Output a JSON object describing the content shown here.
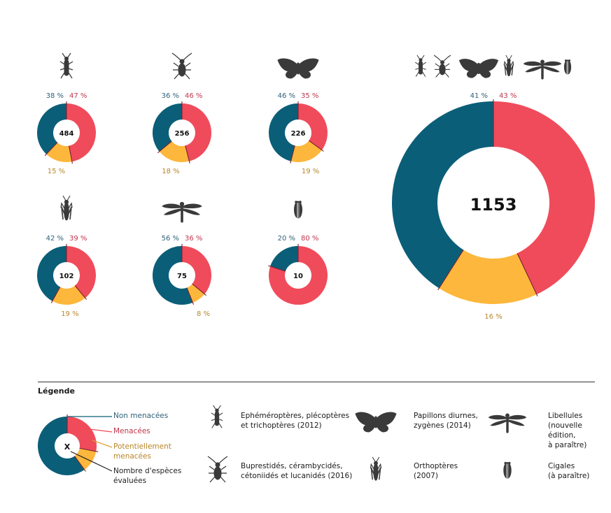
{
  "colors": {
    "non_threatened": "#0b5e78",
    "threatened": "#f04b5b",
    "potentially": "#fdb73c",
    "label_non": "#2f6179",
    "label_threat": "#c0364b",
    "label_pot": "#b8862a",
    "icon": "#3a3a3a"
  },
  "chart_data": {
    "type": "pie",
    "charts": [
      {
        "icon": "caddisfly-icon",
        "total": "484",
        "values": {
          "non_threatened": 38,
          "threatened": 47,
          "potentially": 15
        },
        "labels": {
          "non_threatened": "38 %",
          "threatened": "47 %",
          "potentially": "15 %"
        }
      },
      {
        "icon": "beetle-icon",
        "total": "256",
        "values": {
          "non_threatened": 36,
          "threatened": 46,
          "potentially": 18
        },
        "labels": {
          "non_threatened": "36 %",
          "threatened": "46 %",
          "potentially": "18 %"
        }
      },
      {
        "icon": "butterfly-icon",
        "total": "226",
        "values": {
          "non_threatened": 46,
          "threatened": 35,
          "potentially": 19
        },
        "labels": {
          "non_threatened": "46 %",
          "threatened": "35 %",
          "potentially": "19 %"
        }
      },
      {
        "icon": "grasshopper-icon",
        "total": "102",
        "values": {
          "non_threatened": 42,
          "threatened": 39,
          "potentially": 19
        },
        "labels": {
          "non_threatened": "42 %",
          "threatened": "39 %",
          "potentially": "19 %"
        }
      },
      {
        "icon": "dragonfly-icon",
        "total": "75",
        "values": {
          "non_threatened": 56,
          "threatened": 36,
          "potentially": 8
        },
        "labels": {
          "non_threatened": "56 %",
          "threatened": "36 %",
          "potentially": "8 %"
        }
      },
      {
        "icon": "cicada-icon",
        "total": "10",
        "values": {
          "non_threatened": 20,
          "threatened": 80,
          "potentially": 0
        },
        "labels": {
          "non_threatened": "20 %",
          "threatened": "80 %",
          "potentially": ""
        }
      },
      {
        "icon": "all-groups-icons",
        "total": "1153",
        "values": {
          "non_threatened": 41,
          "threatened": 43,
          "potentially": 16
        },
        "labels": {
          "non_threatened": "41 %",
          "threatened": "43 %",
          "potentially": "16 %"
        }
      }
    ]
  },
  "legend": {
    "title": "Légende",
    "center_symbol": "X",
    "example_values": {
      "non_threatened": 60,
      "threatened": 28,
      "potentially": 12
    },
    "non_threatened": "Non menacées",
    "threatened": "Menacées",
    "potentially": "Potentiellement\nmenacées",
    "count": "Nombre d'espèces\névaluées",
    "groups": [
      {
        "icon": "caddisfly-icon",
        "text": "Ephéméroptères, plécoptères\net trichoptères (2012)"
      },
      {
        "icon": "beetle-icon",
        "text": "Buprestidés, cérambycidés,\ncétoniidés et lucanidés (2016)"
      },
      {
        "icon": "butterfly-icon",
        "text": "Papillons diurnes,\nzygènes (2014)"
      },
      {
        "icon": "grasshopper-icon",
        "text": "Orthoptères\n(2007)"
      },
      {
        "icon": "dragonfly-icon",
        "text": "Libellules\n(nouvelle\nédition,\nà paraître)"
      },
      {
        "icon": "cicada-icon",
        "text": "Cigales\n(à paraître)"
      }
    ]
  }
}
